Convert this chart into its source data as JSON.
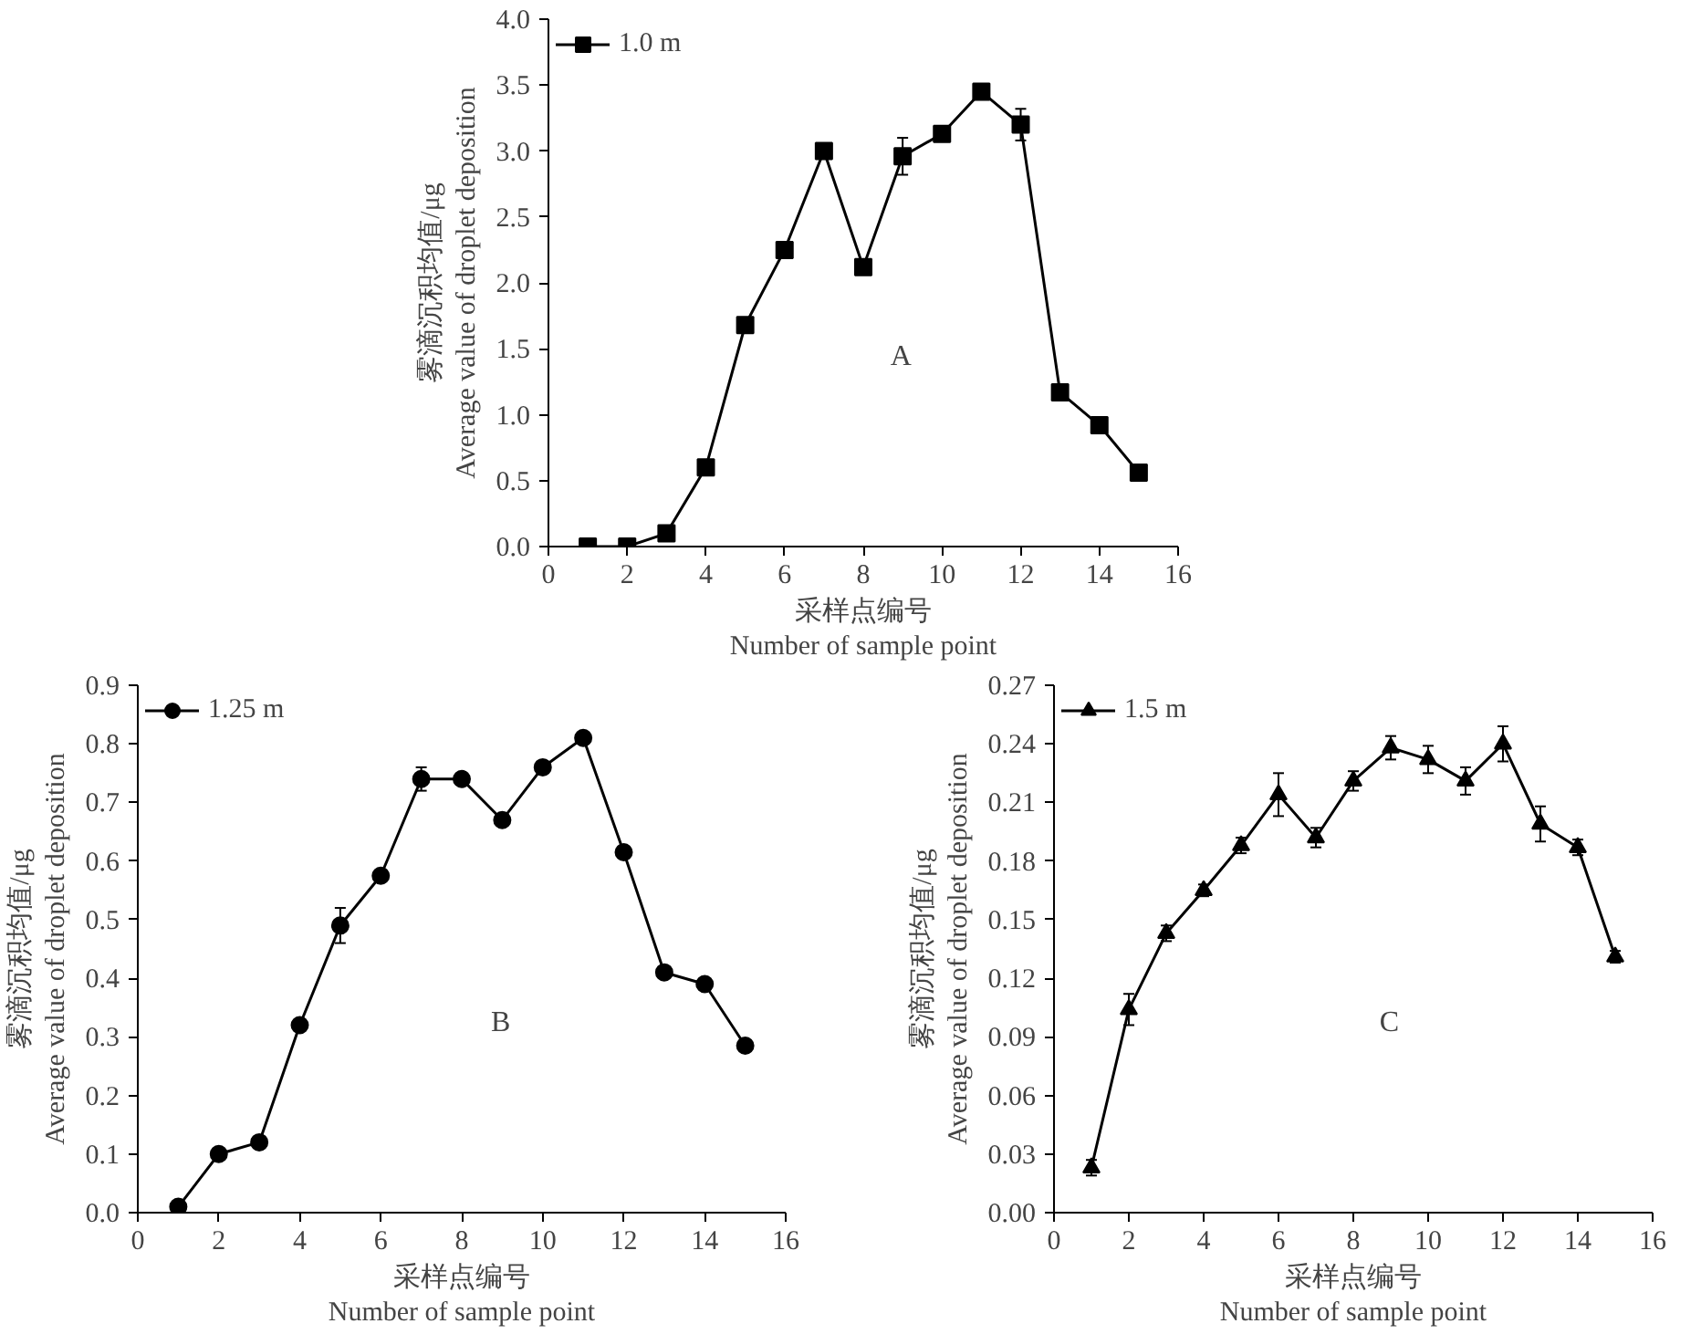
{
  "chart_data": [
    {
      "type": "line",
      "xlabel": "采样点编号\nNumber of sample point",
      "ylabel": "雾滴沉积均值/μg\nAverage value of droplet deposition",
      "annotations": [
        "A"
      ],
      "x": [
        1,
        2,
        3,
        4,
        5,
        6,
        7,
        8,
        9,
        10,
        11,
        12,
        13,
        14,
        15
      ],
      "series": [
        {
          "name": "1.0 m",
          "color": "#000000",
          "values": [
            0.0,
            0.0,
            0.1,
            0.6,
            1.68,
            2.25,
            3.0,
            2.12,
            2.96,
            3.13,
            3.45,
            3.2,
            1.17,
            0.92,
            0.56
          ],
          "errors": [
            null,
            null,
            null,
            0.04,
            0.05,
            0.03,
            0.05,
            null,
            0.14,
            0.05,
            0.03,
            0.12,
            null,
            null,
            null
          ]
        }
      ],
      "xlim": [
        0,
        16
      ],
      "xticks": [
        0,
        2,
        4,
        6,
        8,
        10,
        12,
        14,
        16
      ],
      "ylim": [
        0,
        4.0
      ],
      "yticks": [
        {
          "value": 0,
          "label": "0.0"
        },
        0.5,
        {
          "value": 1,
          "label": "1.0"
        },
        1.5,
        {
          "value": 2,
          "label": "2.0"
        },
        2.5,
        {
          "value": 3,
          "label": "3.0"
        },
        3.5,
        {
          "value": 4,
          "label": "4.0"
        }
      ],
      "marker": "square",
      "line_style": "solid",
      "legend": "top left",
      "grid": false
    },
    {
      "type": "line",
      "xlabel": "采样点编号\nNumber of sample point",
      "ylabel": "雾滴沉积均值/μg\nAverage value of droplet deposition",
      "annotations": [
        "B"
      ],
      "x": [
        1,
        2,
        3,
        4,
        5,
        6,
        7,
        8,
        9,
        10,
        11,
        12,
        13,
        14,
        15
      ],
      "series": [
        {
          "name": "1.25 m",
          "color": "#000000",
          "values": [
            0.01,
            0.1,
            0.12,
            0.32,
            0.49,
            0.575,
            0.74,
            0.74,
            0.67,
            0.76,
            0.81,
            0.615,
            0.41,
            0.39,
            0.285
          ],
          "errors": [
            null,
            null,
            null,
            null,
            0.03,
            0.01,
            0.02,
            null,
            null,
            null,
            null,
            0.01,
            null,
            null,
            null
          ]
        }
      ],
      "xlim": [
        0,
        16
      ],
      "xticks": [
        0,
        2,
        4,
        6,
        8,
        10,
        12,
        14,
        16
      ],
      "ylim": [
        0,
        0.9
      ],
      "yticks": [
        {
          "value": 0,
          "label": "0.0"
        },
        0.1,
        0.2,
        0.3,
        0.4,
        0.5,
        0.6,
        0.7,
        0.8,
        0.9
      ],
      "marker": "circle",
      "line_style": "solid",
      "legend": "top left",
      "grid": false
    },
    {
      "type": "line",
      "xlabel": "采样点编号\nNumber of sample point",
      "ylabel": "雾滴沉积均值/μg\nAverage value of droplet deposition",
      "annotations": [
        "C"
      ],
      "x": [
        1,
        2,
        3,
        4,
        5,
        6,
        7,
        8,
        9,
        10,
        11,
        12,
        13,
        14,
        15
      ],
      "series": [
        {
          "name": "1.5 m",
          "color": "#000000",
          "values": [
            0.023,
            0.104,
            0.143,
            0.165,
            0.188,
            0.214,
            0.192,
            0.221,
            0.238,
            0.232,
            0.221,
            0.24,
            0.199,
            0.187,
            0.131
          ],
          "errors": [
            0.004,
            0.008,
            0.004,
            0.003,
            0.004,
            0.011,
            0.005,
            0.005,
            0.006,
            0.007,
            0.007,
            0.009,
            0.009,
            0.004,
            0.003
          ]
        }
      ],
      "xlim": [
        0,
        16
      ],
      "xticks": [
        0,
        2,
        4,
        6,
        8,
        10,
        12,
        14,
        16
      ],
      "ylim": [
        0,
        0.27
      ],
      "yticks": [
        {
          "value": 0,
          "label": "0.00"
        },
        0.03,
        0.06,
        0.09,
        0.12,
        0.15,
        0.18,
        0.21,
        0.24,
        0.27
      ],
      "marker": "triangle",
      "line_style": "solid",
      "legend": "top left",
      "grid": false
    }
  ]
}
